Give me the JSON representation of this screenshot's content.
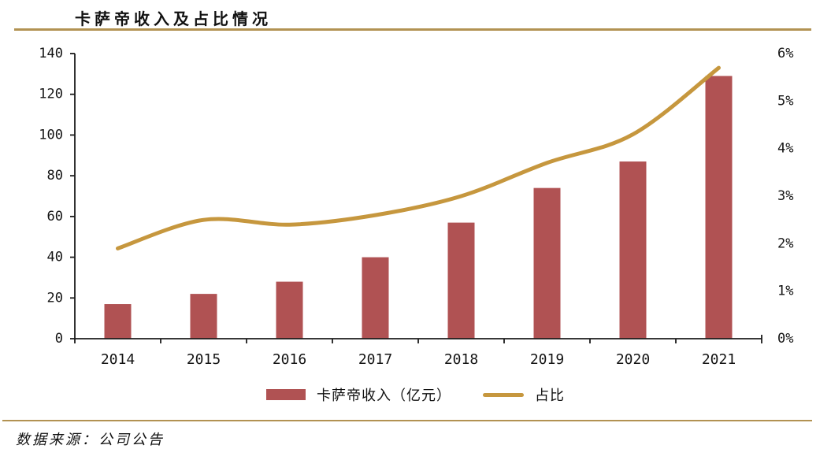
{
  "page": {
    "title": "卡萨帝收入及占比情况",
    "source": "数据来源：公司公告"
  },
  "colors": {
    "bar": "#b05253",
    "line": "#c6973e",
    "rule": "#b29252",
    "axis": "#1c1c1c",
    "text": "#141414"
  },
  "chart_data": {
    "type": "bar",
    "subtype": "combo-bar-line-dual-axis",
    "title": "卡萨帝收入及占比情况",
    "categories": [
      "2014",
      "2015",
      "2016",
      "2017",
      "2018",
      "2019",
      "2020",
      "2021"
    ],
    "series": [
      {
        "name": "卡萨帝收入（亿元）",
        "type": "bar",
        "axis": "left",
        "color": "#b05253",
        "values": [
          17,
          22,
          28,
          40,
          57,
          74,
          87,
          129
        ]
      },
      {
        "name": "占比",
        "type": "line",
        "axis": "right",
        "color": "#c6973e",
        "values": [
          1.9,
          2.5,
          2.4,
          2.6,
          3.0,
          3.7,
          4.3,
          5.7
        ],
        "unit": "%"
      }
    ],
    "left_axis": {
      "min": 0,
      "max": 140,
      "step": 20,
      "ticks": [
        "0",
        "20",
        "40",
        "60",
        "80",
        "100",
        "120",
        "140"
      ]
    },
    "right_axis": {
      "min": 0,
      "max": 6,
      "step": 1,
      "ticks": [
        "0%",
        "1%",
        "2%",
        "3%",
        "4%",
        "5%",
        "6%"
      ]
    },
    "grid": false,
    "legend_position": "bottom",
    "source": "数据来源：公司公告"
  }
}
